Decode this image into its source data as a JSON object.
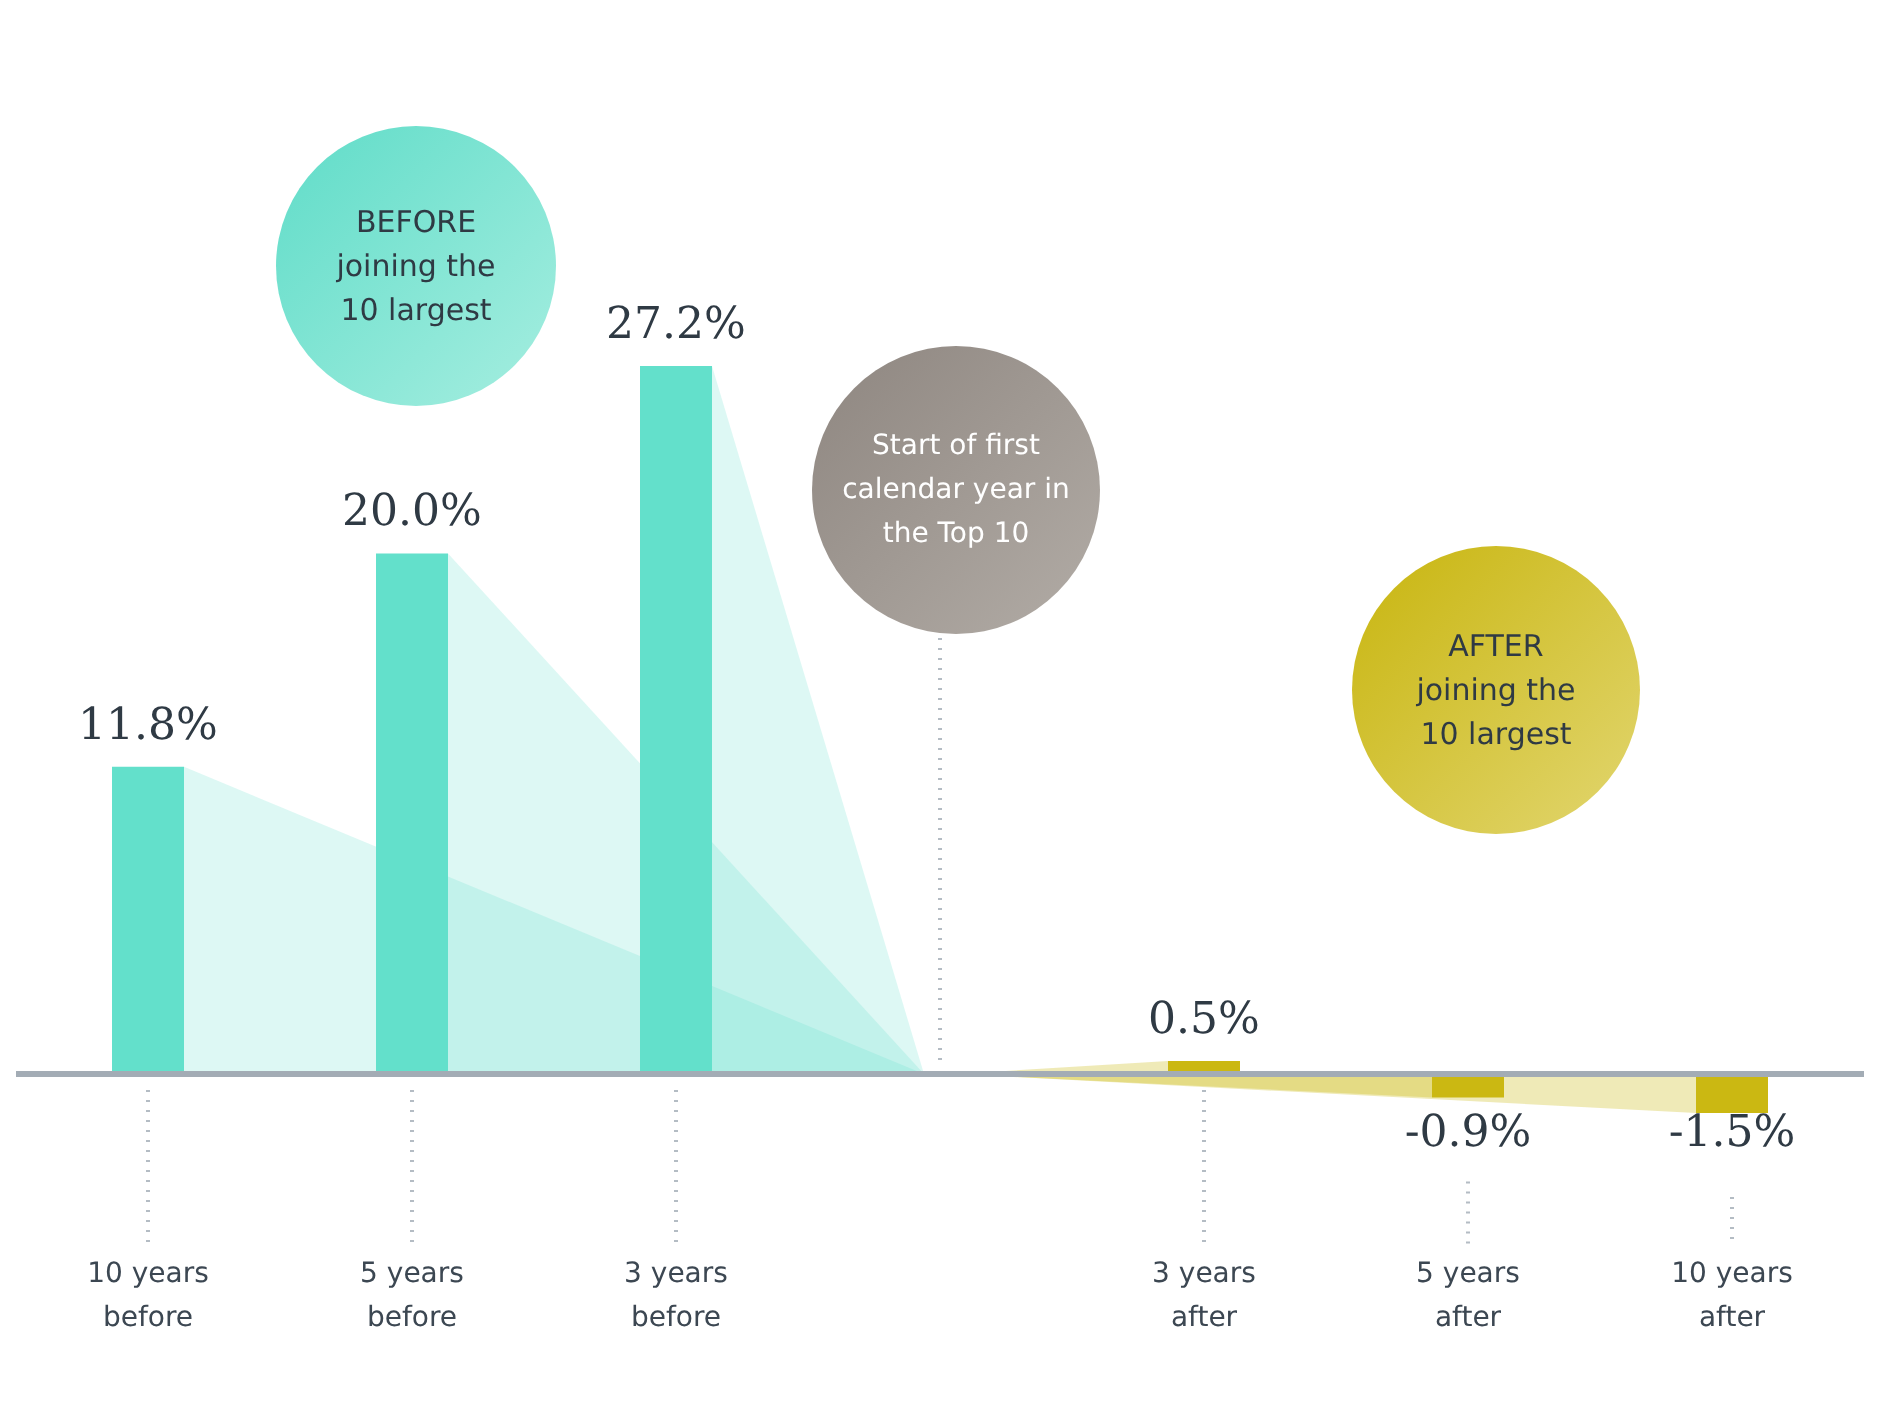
{
  "chart_data": {
    "type": "bar",
    "categories": [
      "10 years before",
      "5 years before",
      "3 years before",
      null,
      "3 years after",
      "5 years after",
      "10 years after"
    ],
    "values": [
      11.8,
      20.0,
      27.2,
      null,
      0.5,
      -0.9,
      -1.5
    ],
    "colors": [
      "#63e0cb",
      "#63e0cb",
      "#63e0cb",
      null,
      "#cbb812",
      "#cbb812",
      "#cbb812"
    ],
    "value_labels": [
      "11.8%",
      "20.0%",
      "27.2%",
      null,
      "0.5%",
      "-0.9%",
      "-1.5%"
    ],
    "annotations": [
      "BEFORE joining the 10 largest",
      "Start of first calendar year in the Top 10",
      "AFTER joining the 10 largest"
    ],
    "grid": false,
    "legend": false
  }
}
